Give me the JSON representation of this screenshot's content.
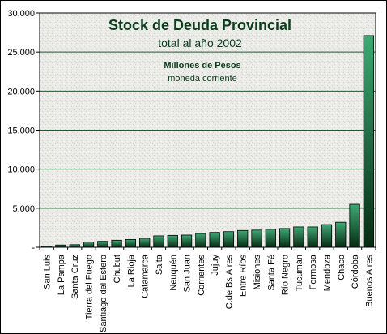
{
  "chart_data": {
    "type": "bar",
    "title": "Stock de Deuda Provincial",
    "subtitle": "total al año 2002",
    "annotation_bold": "Millones de Pesos",
    "annotation": "moneda corriente",
    "xlabel": "",
    "ylabel": "",
    "ylim": [
      0,
      30000
    ],
    "yticks": [
      0,
      5000,
      10000,
      15000,
      20000,
      25000,
      30000
    ],
    "ytick_labels": [
      "-",
      "5.000",
      "10.000",
      "15.000",
      "20.000",
      "25.000",
      "30.000"
    ],
    "grid": true,
    "legend": "none",
    "categories": [
      "San Luis",
      "La Pampa",
      "Santa Cruz",
      "Tierra del Fuego",
      "Santiago del Estero",
      "Chubut",
      "La Rioja",
      "Catamarca",
      "Salta",
      "Neuquén",
      "San Juan",
      "Corrientes",
      "Jujuy",
      "C.de Bs.Aires",
      "Entre Ríos",
      "Misiones",
      "Santa Fé",
      "Río Negro",
      "Tucumán",
      "Formosa",
      "Mendoza",
      "Chaco",
      "Córdoba",
      "Buenos Aires"
    ],
    "values": [
      120,
      290,
      330,
      680,
      760,
      900,
      1000,
      1150,
      1460,
      1520,
      1560,
      1760,
      1900,
      2000,
      2150,
      2200,
      2300,
      2400,
      2600,
      2600,
      2900,
      3200,
      5500,
      27100
    ],
    "colors": {
      "bar_light": "#3fa874",
      "bar_dark": "#052b12",
      "grid": "#1f5a2e",
      "plot_bg": "#ebebe8",
      "text": "#0b3d1c"
    }
  }
}
